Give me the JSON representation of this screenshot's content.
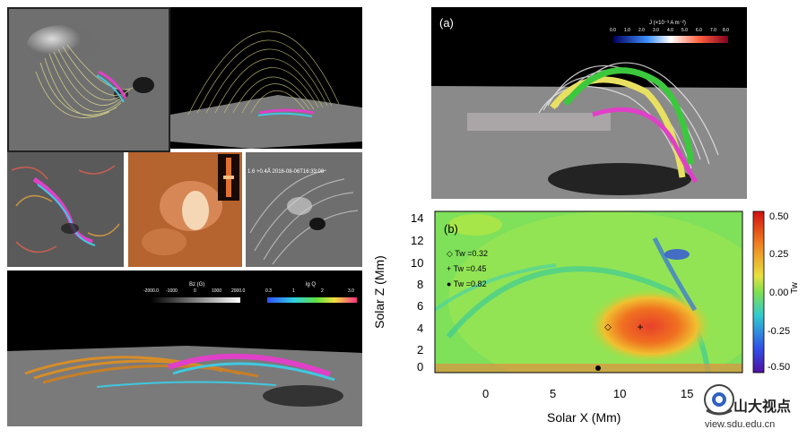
{
  "panel_a": {
    "label": "(a)",
    "colorbar_title": "J (×10⁻³ A m⁻²)",
    "colorbar_ticks": [
      "0.0",
      "1.0",
      "2.0",
      "3.0",
      "4.0",
      "5.0",
      "6.0",
      "7.0",
      "8.0"
    ]
  },
  "panel_b": {
    "label": "(b)",
    "xlabel": "Solar X (Mm)",
    "ylabel": "Solar Z (Mm)",
    "cbar_label": "Tw",
    "xticks": [
      "0",
      "5",
      "10",
      "15"
    ],
    "yticks": [
      "0",
      "2",
      "4",
      "6",
      "8",
      "10",
      "12",
      "14"
    ],
    "cbar_ticks": [
      "0.50",
      "0.25",
      "0.00",
      "-0.25",
      "-0.50"
    ],
    "legend": [
      {
        "marker": "◇",
        "text": "Tw =0.32"
      },
      {
        "marker": "+",
        "text": "Tw =0.45"
      },
      {
        "marker": "●",
        "text": "Tw =0.82"
      }
    ]
  },
  "bottom_left": {
    "bz_title": "Bz (G)",
    "bz_ticks": [
      "-2000.0",
      "-1000",
      "0",
      "1000",
      "2000.0"
    ],
    "q_title": "lg Q",
    "q_ticks": [
      "0.3",
      "1",
      "2",
      "3.0"
    ]
  },
  "aia_label": "1.6 +0.4Å    2016-08-06T16:33:08",
  "watermark": {
    "title": "山大视点",
    "url": "view.sdu.edu.cn"
  },
  "colors": {
    "green_field": "#7fe05a",
    "hot_core": "#e8402a",
    "flux_magenta": "#e040c8",
    "flux_yellow": "#e6e060",
    "flux_green": "#3cc83c"
  }
}
